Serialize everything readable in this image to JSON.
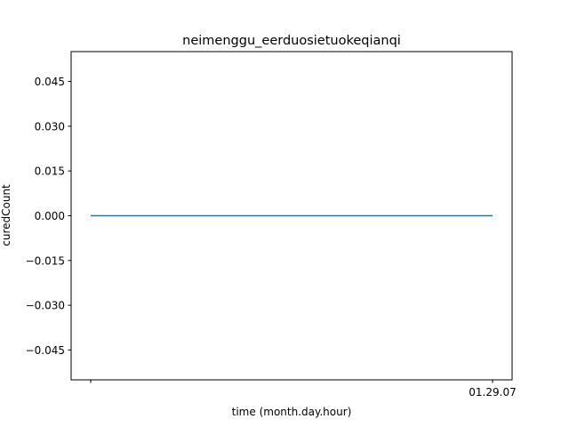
{
  "chart_data": {
    "type": "line",
    "title": "neimenggu_eerduosietuokeqianqi",
    "xlabel": "time (month.day.hour)",
    "ylabel": "curedCount",
    "x_ticks": [
      "",
      "01.29.07"
    ],
    "y_ticks": [
      -0.045,
      -0.03,
      -0.015,
      0.0,
      0.015,
      0.03,
      0.045
    ],
    "y_tick_labels": [
      "−0.045",
      "−0.030",
      "−0.015",
      "0.000",
      "0.015",
      "0.030",
      "0.045"
    ],
    "ylim": [
      -0.055,
      0.055
    ],
    "series": [
      {
        "x": [
          "",
          "01.29.07"
        ],
        "values": [
          0,
          0
        ],
        "color": "#1f77b4"
      }
    ],
    "grid": false,
    "legend": "none"
  }
}
